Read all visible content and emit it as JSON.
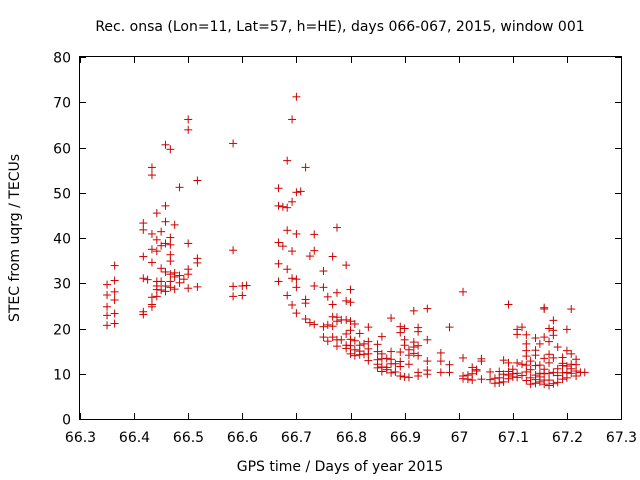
{
  "chart_data": {
    "type": "scatter",
    "title": "Rec. onsa (Lon=11, Lat=57, h=HE), days 066-067, 2015, window 001",
    "xlabel": "GPS time / Days of year 2015",
    "ylabel": "STEC from uqrg / TECUs",
    "xlim": [
      66.3,
      67.3
    ],
    "ylim": [
      0,
      80
    ],
    "x_ticks": [
      "66.3",
      "66.4",
      "66.5",
      "66.6",
      "66.7",
      "66.8",
      "66.9",
      "67",
      "67.1",
      "67.2",
      "67.3"
    ],
    "y_ticks": [
      "0",
      "10",
      "20",
      "30",
      "40",
      "50",
      "60",
      "70",
      "80"
    ],
    "x_tick_values": [
      66.3,
      66.4,
      66.5,
      66.6,
      66.7,
      66.8,
      66.9,
      67.0,
      67.1,
      67.2,
      67.3
    ],
    "y_tick_values": [
      0,
      10,
      20,
      30,
      40,
      50,
      60,
      70,
      80
    ],
    "grid": false,
    "marker": "plus",
    "color": "#cc0000",
    "points": [
      [
        66.35,
        29.7
      ],
      [
        66.35,
        27.4
      ],
      [
        66.35,
        24.8
      ],
      [
        66.35,
        22.9
      ],
      [
        66.35,
        20.7
      ],
      [
        66.364,
        33.9
      ],
      [
        66.364,
        30.6
      ],
      [
        66.364,
        28.1
      ],
      [
        66.364,
        26.3
      ],
      [
        66.364,
        23.3
      ],
      [
        66.364,
        21.1
      ],
      [
        66.417,
        43.3
      ],
      [
        66.417,
        41.8
      ],
      [
        66.417,
        35.9
      ],
      [
        66.417,
        31.1
      ],
      [
        66.417,
        23.7
      ],
      [
        66.417,
        23.1
      ],
      [
        66.425,
        30.8
      ],
      [
        66.433,
        55.6
      ],
      [
        66.433,
        53.9
      ],
      [
        66.433,
        40.9
      ],
      [
        66.433,
        37.5
      ],
      [
        66.433,
        34.6
      ],
      [
        66.433,
        26.9
      ],
      [
        66.433,
        25.3
      ],
      [
        66.433,
        24.8
      ],
      [
        66.442,
        45.5
      ],
      [
        66.442,
        39.6
      ],
      [
        66.442,
        37.1
      ],
      [
        66.442,
        30.4
      ],
      [
        66.442,
        29.4
      ],
      [
        66.442,
        28.6
      ],
      [
        66.442,
        27.1
      ],
      [
        66.45,
        41.4
      ],
      [
        66.45,
        38.3
      ],
      [
        66.45,
        33.3
      ],
      [
        66.45,
        30.4
      ],
      [
        66.45,
        28.5
      ],
      [
        66.458,
        60.6
      ],
      [
        66.458,
        47.1
      ],
      [
        66.458,
        43.6
      ],
      [
        66.458,
        38.8
      ],
      [
        66.458,
        32.5
      ],
      [
        66.458,
        29.4
      ],
      [
        66.458,
        28.2
      ],
      [
        66.467,
        59.6
      ],
      [
        66.467,
        40.1
      ],
      [
        66.467,
        38.5
      ],
      [
        66.467,
        36.3
      ],
      [
        66.467,
        34.9
      ],
      [
        66.467,
        32.0
      ],
      [
        66.467,
        30.4
      ],
      [
        66.467,
        29.1
      ],
      [
        66.475,
        42.9
      ],
      [
        66.475,
        32.3
      ],
      [
        66.475,
        31.4
      ],
      [
        66.475,
        28.7
      ],
      [
        66.484,
        51.2
      ],
      [
        66.484,
        31.7
      ],
      [
        66.484,
        30.1
      ],
      [
        66.492,
        30.9
      ],
      [
        66.5,
        66.2
      ],
      [
        66.5,
        63.9
      ],
      [
        66.5,
        38.8
      ],
      [
        66.5,
        33.1
      ],
      [
        66.5,
        32.0
      ],
      [
        66.5,
        28.9
      ],
      [
        66.517,
        52.7
      ],
      [
        66.517,
        35.5
      ],
      [
        66.517,
        34.5
      ],
      [
        66.517,
        29.2
      ],
      [
        66.583,
        60.9
      ],
      [
        66.583,
        37.3
      ],
      [
        66.583,
        29.3
      ],
      [
        66.583,
        27.1
      ],
      [
        66.6,
        29.4
      ],
      [
        66.6,
        27.3
      ],
      [
        66.608,
        29.5
      ],
      [
        66.667,
        51.0
      ],
      [
        66.667,
        47.1
      ],
      [
        66.667,
        39.0
      ],
      [
        66.667,
        34.3
      ],
      [
        66.667,
        30.4
      ],
      [
        66.675,
        46.9
      ],
      [
        66.675,
        38.2
      ],
      [
        66.683,
        57.1
      ],
      [
        66.683,
        46.7
      ],
      [
        66.683,
        41.7
      ],
      [
        66.683,
        33.1
      ],
      [
        66.683,
        27.3
      ],
      [
        66.692,
        66.2
      ],
      [
        66.692,
        48.0
      ],
      [
        66.692,
        37.1
      ],
      [
        66.692,
        31.1
      ],
      [
        66.692,
        25.2
      ],
      [
        66.7,
        71.2
      ],
      [
        66.7,
        50.1
      ],
      [
        66.7,
        40.9
      ],
      [
        66.7,
        30.9
      ],
      [
        66.7,
        29.1
      ],
      [
        66.7,
        23.4
      ],
      [
        66.708,
        50.3
      ],
      [
        66.717,
        55.6
      ],
      [
        66.717,
        26.4
      ],
      [
        66.717,
        25.6
      ],
      [
        66.717,
        22.1
      ],
      [
        66.725,
        36.0
      ],
      [
        66.725,
        21.3
      ],
      [
        66.733,
        40.8
      ],
      [
        66.733,
        37.2
      ],
      [
        66.733,
        29.4
      ],
      [
        66.733,
        20.9
      ],
      [
        66.75,
        32.7
      ],
      [
        66.75,
        29.1
      ],
      [
        66.75,
        20.4
      ],
      [
        66.75,
        18.1
      ],
      [
        66.758,
        27.0
      ],
      [
        66.758,
        20.8
      ],
      [
        66.758,
        17.2
      ],
      [
        66.767,
        35.9
      ],
      [
        66.767,
        25.3
      ],
      [
        66.767,
        22.6
      ],
      [
        66.767,
        20.5
      ],
      [
        66.767,
        18.1
      ],
      [
        66.775,
        42.3
      ],
      [
        66.775,
        27.9
      ],
      [
        66.775,
        22.5
      ],
      [
        66.775,
        21.6
      ],
      [
        66.775,
        17.5
      ],
      [
        66.775,
        16.1
      ],
      [
        66.783,
        21.9
      ],
      [
        66.783,
        17.5
      ],
      [
        66.792,
        34.0
      ],
      [
        66.792,
        26.1
      ],
      [
        66.792,
        21.9
      ],
      [
        66.792,
        18.8
      ],
      [
        66.792,
        16.3
      ],
      [
        66.792,
        15.6
      ],
      [
        66.8,
        28.6
      ],
      [
        66.8,
        25.8
      ],
      [
        66.8,
        21.6
      ],
      [
        66.8,
        19.6
      ],
      [
        66.8,
        17.6
      ],
      [
        66.8,
        16.2
      ],
      [
        66.8,
        14.4
      ],
      [
        66.808,
        21.0
      ],
      [
        66.808,
        17.3
      ],
      [
        66.808,
        15.3
      ],
      [
        66.808,
        14.0
      ],
      [
        66.817,
        18.9
      ],
      [
        66.817,
        16.3
      ],
      [
        66.817,
        15.0
      ],
      [
        66.817,
        14.2
      ],
      [
        66.825,
        16.6
      ],
      [
        66.825,
        14.3
      ],
      [
        66.833,
        20.3
      ],
      [
        66.833,
        17.1
      ],
      [
        66.833,
        15.5
      ],
      [
        66.833,
        14.4
      ],
      [
        66.833,
        12.9
      ],
      [
        66.85,
        16.5
      ],
      [
        66.85,
        14.9
      ],
      [
        66.85,
        13.1
      ],
      [
        66.85,
        12.1
      ],
      [
        66.85,
        11.3
      ],
      [
        66.858,
        18.2
      ],
      [
        66.858,
        14.4
      ],
      [
        66.858,
        13.3
      ],
      [
        66.858,
        11.5
      ],
      [
        66.858,
        10.5
      ],
      [
        66.867,
        13.4
      ],
      [
        66.867,
        11.4
      ],
      [
        66.867,
        10.9
      ],
      [
        66.875,
        22.3
      ],
      [
        66.875,
        14.9
      ],
      [
        66.875,
        13.2
      ],
      [
        66.875,
        12.2
      ],
      [
        66.875,
        10.2
      ],
      [
        66.883,
        12.2
      ],
      [
        66.883,
        10.4
      ],
      [
        66.892,
        20.4
      ],
      [
        66.892,
        19.1
      ],
      [
        66.892,
        14.8
      ],
      [
        66.892,
        12.7
      ],
      [
        66.892,
        11.6
      ],
      [
        66.892,
        9.5
      ],
      [
        66.9,
        20.0
      ],
      [
        66.9,
        17.5
      ],
      [
        66.9,
        16.3
      ],
      [
        66.9,
        9.3
      ],
      [
        66.908,
        15.3
      ],
      [
        66.908,
        14.1
      ],
      [
        66.908,
        12.1
      ],
      [
        66.908,
        9.2
      ],
      [
        66.917,
        23.9
      ],
      [
        66.917,
        17.0
      ],
      [
        66.917,
        15.9
      ],
      [
        66.917,
        14.5
      ],
      [
        66.925,
        20.2
      ],
      [
        66.925,
        19.3
      ],
      [
        66.925,
        16.2
      ],
      [
        66.925,
        14.0
      ],
      [
        66.925,
        10.3
      ],
      [
        66.925,
        9.5
      ],
      [
        66.942,
        24.4
      ],
      [
        66.942,
        17.5
      ],
      [
        66.942,
        12.8
      ],
      [
        66.942,
        10.8
      ],
      [
        66.942,
        9.9
      ],
      [
        66.967,
        14.6
      ],
      [
        66.967,
        12.8
      ],
      [
        66.967,
        10.3
      ],
      [
        66.983,
        20.3
      ],
      [
        66.983,
        12.0
      ],
      [
        66.983,
        10.3
      ],
      [
        67.008,
        28.1
      ],
      [
        67.008,
        13.5
      ],
      [
        67.008,
        9.5
      ],
      [
        67.008,
        8.9
      ],
      [
        67.017,
        9.7
      ],
      [
        67.017,
        8.8
      ],
      [
        67.025,
        11.4
      ],
      [
        67.025,
        10.0
      ],
      [
        67.025,
        8.6
      ],
      [
        67.033,
        10.9
      ],
      [
        67.033,
        10.6
      ],
      [
        67.042,
        13.3
      ],
      [
        67.042,
        12.8
      ],
      [
        67.042,
        8.8
      ],
      [
        67.058,
        10.4
      ],
      [
        67.058,
        8.7
      ],
      [
        67.067,
        9.0
      ],
      [
        67.067,
        7.9
      ],
      [
        67.075,
        10.5
      ],
      [
        67.075,
        9.1
      ],
      [
        67.075,
        8.0
      ],
      [
        67.083,
        13.0
      ],
      [
        67.083,
        9.9
      ],
      [
        67.083,
        8.2
      ],
      [
        67.092,
        25.3
      ],
      [
        67.092,
        12.4
      ],
      [
        67.092,
        10.5
      ],
      [
        67.092,
        9.7
      ],
      [
        67.092,
        8.9
      ],
      [
        67.1,
        11.0
      ],
      [
        67.1,
        10.0
      ],
      [
        67.1,
        9.3
      ],
      [
        67.108,
        19.8
      ],
      [
        67.108,
        18.7
      ],
      [
        67.108,
        12.4
      ],
      [
        67.108,
        10.1
      ],
      [
        67.108,
        9.2
      ],
      [
        67.117,
        20.3
      ],
      [
        67.117,
        12.1
      ],
      [
        67.117,
        9.6
      ],
      [
        67.125,
        18.6
      ],
      [
        67.125,
        16.6
      ],
      [
        67.125,
        15.1
      ],
      [
        67.125,
        13.9
      ],
      [
        67.125,
        11.9
      ],
      [
        67.125,
        10.4
      ],
      [
        67.125,
        8.5
      ],
      [
        67.133,
        12.8
      ],
      [
        67.133,
        10.9
      ],
      [
        67.133,
        9.1
      ],
      [
        67.133,
        7.7
      ],
      [
        67.142,
        17.9
      ],
      [
        67.142,
        15.2
      ],
      [
        67.142,
        14.1
      ],
      [
        67.142,
        11.8
      ],
      [
        67.142,
        9.7
      ],
      [
        67.142,
        8.7
      ],
      [
        67.142,
        7.9
      ],
      [
        67.15,
        16.6
      ],
      [
        67.15,
        11.9
      ],
      [
        67.15,
        10.1
      ],
      [
        67.15,
        9.3
      ],
      [
        67.15,
        8.2
      ],
      [
        67.158,
        24.6
      ],
      [
        67.158,
        24.3
      ],
      [
        67.158,
        18.1
      ],
      [
        67.158,
        13.4
      ],
      [
        67.158,
        11.0
      ],
      [
        67.158,
        10.0
      ],
      [
        67.158,
        8.6
      ],
      [
        67.158,
        7.7
      ],
      [
        67.167,
        20.0
      ],
      [
        67.167,
        17.1
      ],
      [
        67.167,
        14.3
      ],
      [
        67.167,
        12.4
      ],
      [
        67.167,
        10.1
      ],
      [
        67.167,
        8.6
      ],
      [
        67.167,
        7.4
      ],
      [
        67.175,
        21.8
      ],
      [
        67.175,
        19.6
      ],
      [
        67.175,
        18.5
      ],
      [
        67.175,
        13.5
      ],
      [
        67.175,
        10.3
      ],
      [
        67.175,
        7.8
      ],
      [
        67.183,
        15.9
      ],
      [
        67.183,
        11.1
      ],
      [
        67.183,
        9.6
      ],
      [
        67.183,
        8.1
      ],
      [
        67.192,
        13.6
      ],
      [
        67.192,
        12.3
      ],
      [
        67.192,
        11.8
      ],
      [
        67.192,
        10.2
      ],
      [
        67.192,
        8.8
      ],
      [
        67.2,
        19.8
      ],
      [
        67.2,
        15.1
      ],
      [
        67.2,
        11.7
      ],
      [
        67.2,
        10.3
      ],
      [
        67.2,
        9.1
      ],
      [
        67.208,
        24.3
      ],
      [
        67.208,
        14.4
      ],
      [
        67.208,
        12.1
      ],
      [
        67.208,
        11.1
      ],
      [
        67.208,
        10.1
      ],
      [
        67.217,
        13.2
      ],
      [
        67.217,
        12.0
      ],
      [
        67.217,
        10.6
      ],
      [
        67.217,
        9.5
      ],
      [
        67.225,
        10.3
      ],
      [
        67.233,
        10.3
      ]
    ]
  }
}
